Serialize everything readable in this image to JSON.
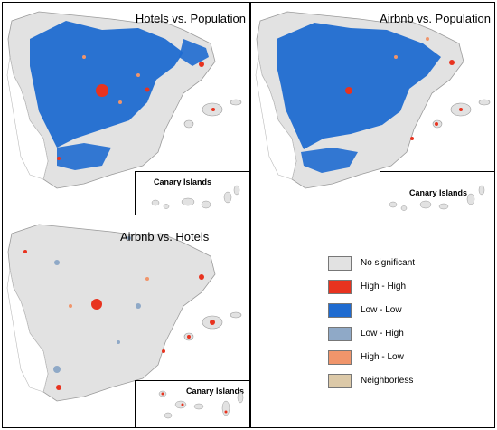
{
  "panels": {
    "hotels_population": {
      "title": "Hotels vs. Population",
      "inset_label": "Canary Islands"
    },
    "airbnb_population": {
      "title": "Airbnb vs. Population",
      "inset_label": "Canary Islands"
    },
    "airbnb_hotels": {
      "title": "Airbnb vs. Hotels",
      "inset_label": "Canary Islands"
    }
  },
  "legend": {
    "items": [
      {
        "label": "No significant",
        "color": "#e2e2e2"
      },
      {
        "label": "High - High",
        "color": "#e8331f"
      },
      {
        "label": "Low - Low",
        "color": "#1f6bd0"
      },
      {
        "label": "Low - High",
        "color": "#8fa9c7"
      },
      {
        "label": "High  - Low",
        "color": "#f0956b"
      },
      {
        "label": "Neighborless",
        "color": "#dcc9a8"
      }
    ]
  },
  "colors": {
    "land": "#e2e2e2",
    "coast": "#9a9a9a",
    "high_high": "#e8331f",
    "low_low": "#1f6bd0",
    "low_high": "#8fa9c7",
    "high_low": "#f0956b"
  }
}
